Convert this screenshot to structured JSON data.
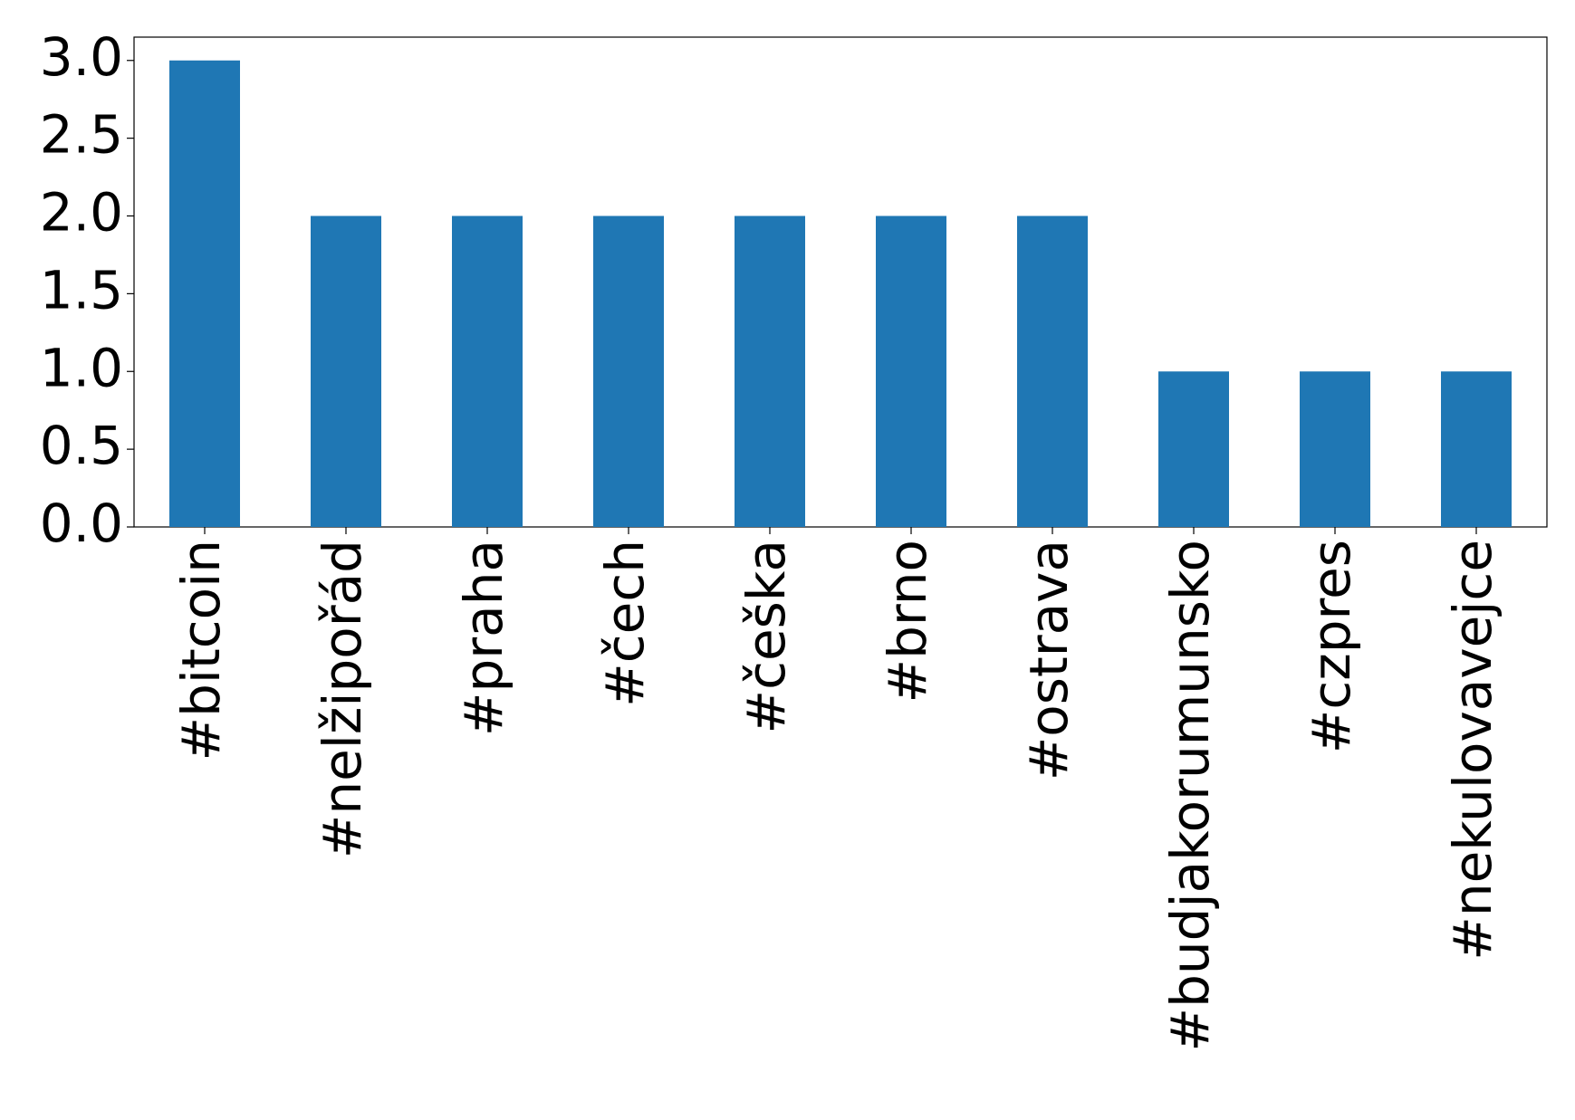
{
  "chart_data": {
    "type": "bar",
    "categories": [
      "#bitcoin",
      "#nelžipořád",
      "#praha",
      "#čech",
      "#češka",
      "#brno",
      "#ostrava",
      "#budjakorumunsko",
      "#czpres",
      "#nekulovavejce"
    ],
    "values": [
      3,
      2,
      2,
      2,
      2,
      2,
      2,
      1,
      1,
      1
    ],
    "color": "#1f77b4",
    "ylim": [
      0,
      3.15
    ],
    "yticks": [
      {
        "value": 0,
        "label": "0.0"
      },
      {
        "value": 0.5,
        "label": "0.5"
      },
      {
        "value": 1,
        "label": "1.0"
      },
      {
        "value": 1.5,
        "label": "1.5"
      },
      {
        "value": 2,
        "label": "2.0"
      },
      {
        "value": 2.5,
        "label": "2.5"
      },
      {
        "value": 3,
        "label": "3.0"
      }
    ],
    "grid": false
  }
}
